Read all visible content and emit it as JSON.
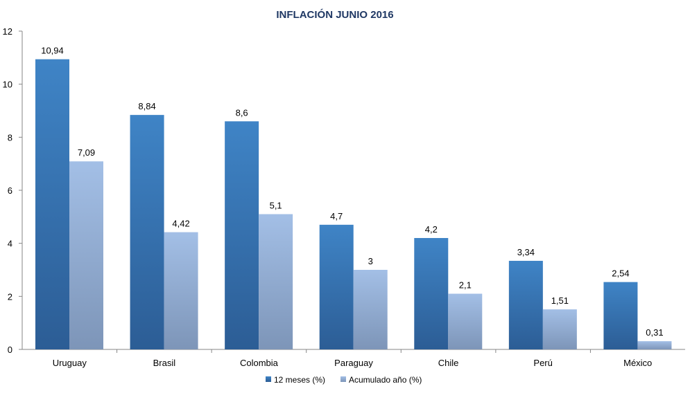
{
  "chart_data": {
    "type": "bar",
    "title": "INFLACIÓN JUNIO 2016",
    "xlabel": "",
    "ylabel": "",
    "categories": [
      "Uruguay",
      "Brasil",
      "Colombia",
      "Paraguay",
      "Chile",
      "Perú",
      "México"
    ],
    "series": [
      {
        "name": "12 meses (%)",
        "values": [
          10.94,
          8.84,
          8.6,
          4.7,
          4.2,
          3.34,
          2.54
        ],
        "labels": [
          "10,94",
          "8,84",
          "8,6",
          "4,7",
          "4,2",
          "3,34",
          "2,54"
        ],
        "color": "#3a78b8"
      },
      {
        "name": "Acumulado año (%)",
        "values": [
          7.09,
          4.42,
          5.1,
          3,
          2.1,
          1.51,
          0.31
        ],
        "labels": [
          "7,09",
          "4,42",
          "5,1",
          "3",
          "2,1",
          "1,51",
          "0,31"
        ],
        "color": "#98b4dc"
      }
    ],
    "ylim": [
      0,
      12
    ],
    "yticks": [
      0,
      2,
      4,
      6,
      8,
      10,
      12
    ],
    "grid": false,
    "legend": "bottom"
  }
}
